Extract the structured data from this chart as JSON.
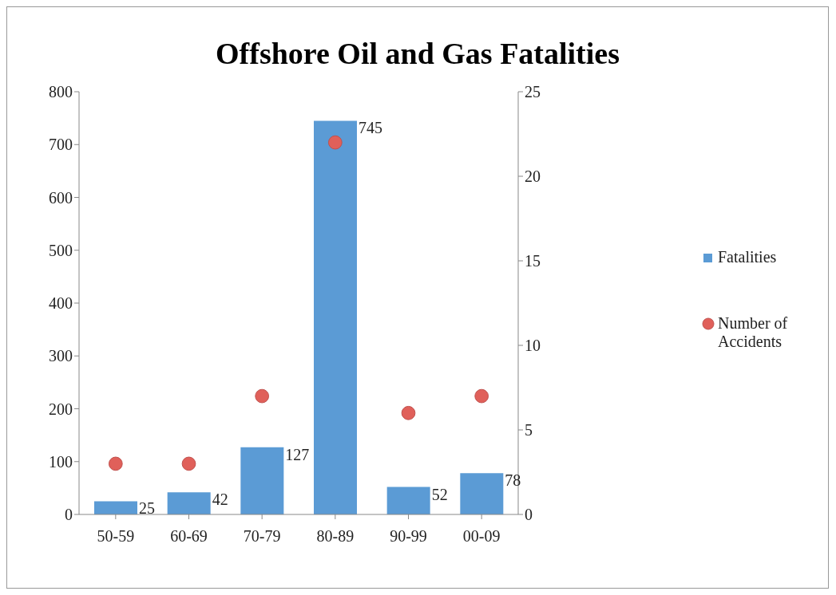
{
  "chart_data": {
    "type": "bar",
    "title": "Offshore Oil and Gas Fatalities",
    "categories": [
      "50-59",
      "60-69",
      "70-79",
      "80-89",
      "90-99",
      "00-09"
    ],
    "series": [
      {
        "name": "Fatalities",
        "color": "#5b9bd5",
        "values": [
          25,
          42,
          127,
          745,
          52,
          78
        ],
        "value_labels": [
          "25",
          "42",
          "127",
          "745",
          "52",
          "78"
        ]
      },
      {
        "name": "Number of Accidents",
        "type": "scatter",
        "axis": "y2",
        "color": "#e0605a",
        "values": [
          3,
          3,
          7,
          22,
          6,
          7
        ]
      }
    ],
    "ylim": [
      0,
      800
    ],
    "yticks": [
      0,
      100,
      200,
      300,
      400,
      500,
      600,
      700,
      800
    ],
    "y2lim": [
      0,
      25
    ],
    "y2ticks": [
      0,
      5,
      10,
      15,
      20,
      25
    ],
    "grid": false,
    "legend": "right",
    "marker": "circle"
  }
}
